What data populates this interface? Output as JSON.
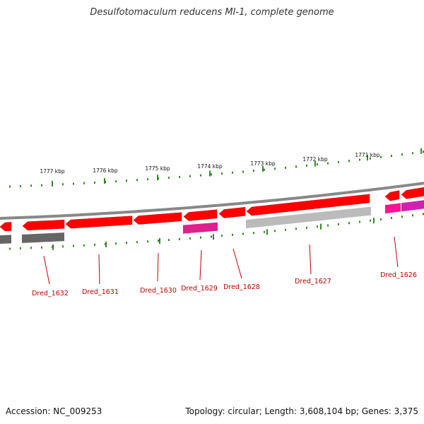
{
  "title": "Desulfotomaculum reducens MI-1, complete genome",
  "footer": {
    "accession": "Accession: NC_009253",
    "topology": "Topology: circular; Length: 3,608,104 bp; Genes: 3,375"
  },
  "colors": {
    "gene_forward": "#ff0000",
    "gene_reverse_strand_band": "#ff1493",
    "backbone": "#888888",
    "ticks": "#2e8b22",
    "label": "#c00000"
  },
  "kbp_labels": [
    "1777 kbp",
    "1776 kbp",
    "1775 kbp",
    "1774 kbp",
    "1773 kbp",
    "1772 kbp",
    "1771 kbp"
  ],
  "genes": [
    {
      "name": "Dred_1632"
    },
    {
      "name": "Dred_1631"
    },
    {
      "name": "Dred_1630"
    },
    {
      "name": "Dred_1629"
    },
    {
      "name": "Dred_1628"
    },
    {
      "name": "Dred_1627"
    },
    {
      "name": "Dred_1626"
    }
  ]
}
